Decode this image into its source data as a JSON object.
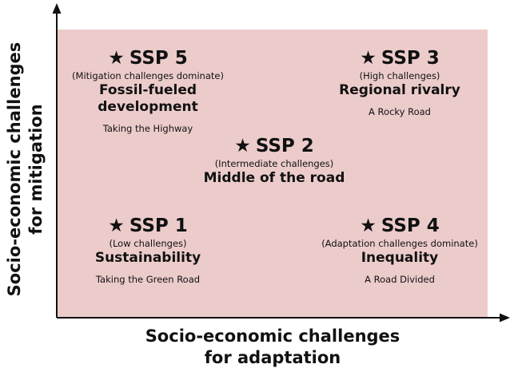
{
  "diagram": {
    "x_axis_title_line1": "Socio-economic challenges",
    "x_axis_title_line2": "for adaptation",
    "y_axis_title_line1": "Socio-economic challenges",
    "y_axis_title_line2": "for mitigation",
    "background_color": "#eccccb",
    "star_glyph": "★",
    "scenarios": {
      "ssp5": {
        "label": "SSP 5",
        "challenge": "(Mitigation challenges dominate)",
        "name_line1": "Fossil-fueled",
        "name_line2": "development",
        "road": "Taking the Highway"
      },
      "ssp3": {
        "label": "SSP 3",
        "challenge": "(High challenges)",
        "name_line1": "Regional rivalry",
        "road": "A Rocky Road"
      },
      "ssp2": {
        "label": "SSP 2",
        "challenge": "(Intermediate challenges)",
        "name_line1": "Middle of the road"
      },
      "ssp1": {
        "label": "SSP 1",
        "challenge": "(Low challenges)",
        "name_line1": "Sustainability",
        "road": "Taking the Green Road"
      },
      "ssp4": {
        "label": "SSP 4",
        "challenge": "(Adaptation challenges dominate)",
        "name_line1": "Inequality",
        "road": "A Road Divided"
      }
    }
  }
}
